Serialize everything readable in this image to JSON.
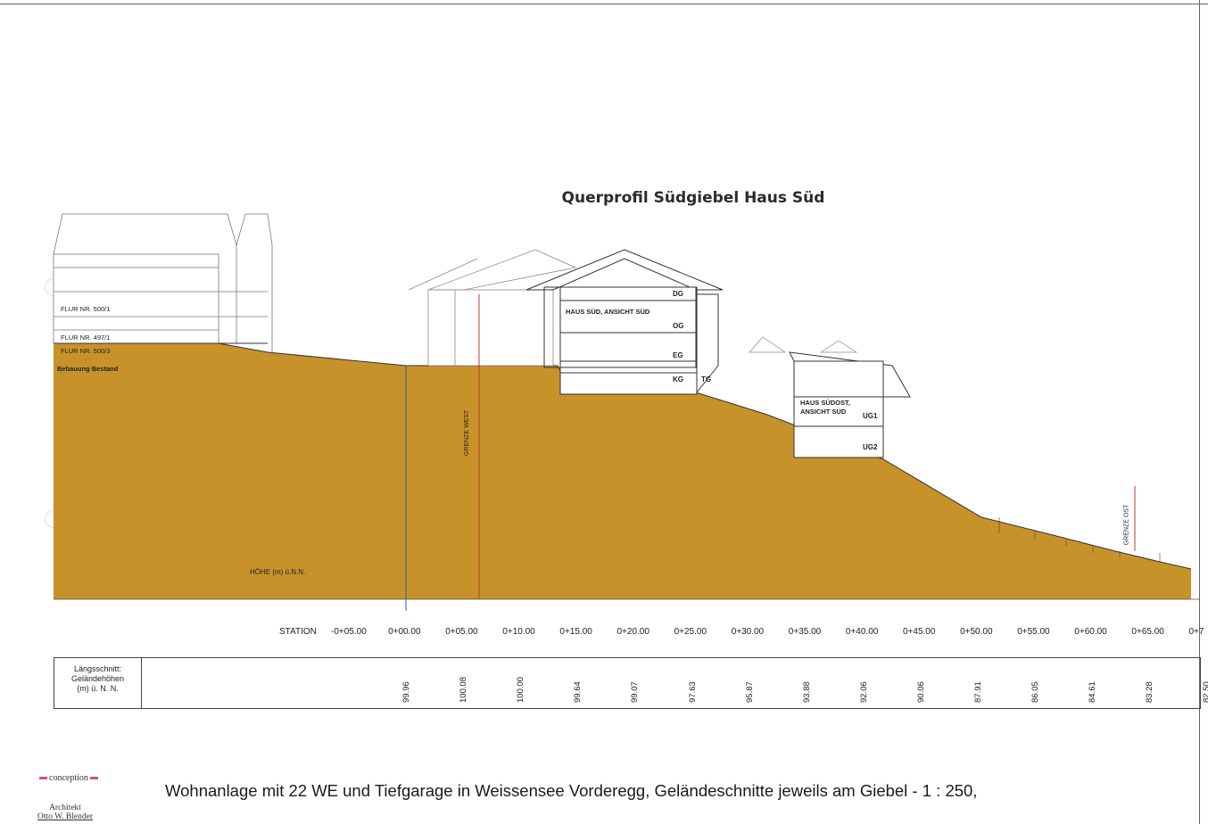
{
  "title": "Querprofil Südgiebel Haus Süd",
  "labels": {
    "flur1": "FLUR NR. 500/1",
    "flur2": "FLUR NR. 497/1",
    "flur3": "FLUR NR. 500/3",
    "bebauung": "Bebauung Bestand",
    "haus_sued": "HAUS SÜD, ANSICHT SÜD",
    "haus_suedost_1": "HAUS SÜDOST,",
    "haus_suedost_2": "ANSICHT SÜD",
    "dg": "DG",
    "og": "OG",
    "eg": "EG",
    "kg": "KG",
    "tg": "TG",
    "ug1": "UG1",
    "ug2": "UG2",
    "grenze_west": "GRENZE WEST",
    "grenze_ost": "GRENZE OST",
    "hoehe_nn": "HÖHE (m) ü.N.N.",
    "station": "STATION"
  },
  "stations": [
    "-0+05.00",
    "0+00.00",
    "0+05.00",
    "0+10.00",
    "0+15.00",
    "0+20.00",
    "0+25.00",
    "0+30.00",
    "0+35.00",
    "0+40.00",
    "0+45.00",
    "0+50.00",
    "0+55.00",
    "0+60.00",
    "0+65.00",
    "0+7"
  ],
  "table": {
    "header": [
      "Längsschnitt:",
      "Geländehöhen",
      "(m) ü. N. N."
    ],
    "elevations": [
      "99.96",
      "100.08",
      "100.00",
      "99.64",
      "99.07",
      "97.63",
      "95.87",
      "93.88",
      "92.06",
      "90.06",
      "87.91",
      "86.05",
      "84.61",
      "83.28",
      "82.50"
    ]
  },
  "footer": {
    "title": "Wohnanlage mit 22 WE und Tiefgarage in Weissensee Vorderegg, Geländeschnitte jeweils am Giebel   -  1 : 250,",
    "conception": "conception",
    "architekt_1": "Architekt",
    "architekt_2": "Otto W. Blender"
  },
  "colors": {
    "terrain": "#c8922a",
    "accent": "#d04a9a",
    "dimension": "#2a5db0",
    "boundary": "#c0392b"
  }
}
